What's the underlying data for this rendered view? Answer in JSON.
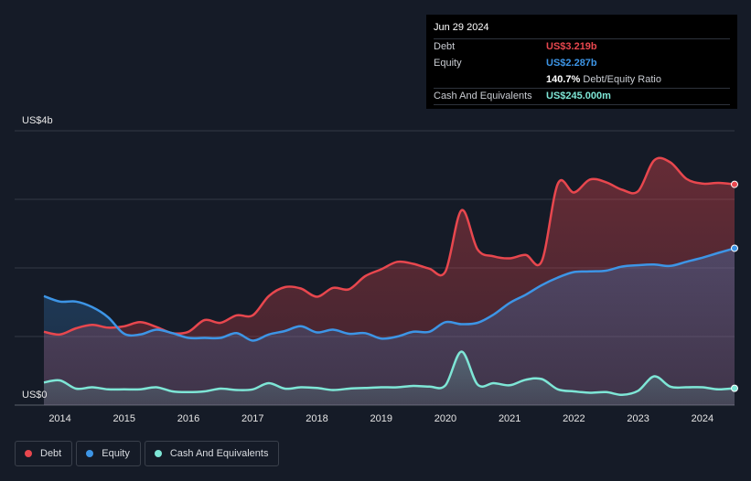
{
  "tooltip": {
    "date": "Jun 29 2024",
    "rows": [
      {
        "label": "Debt",
        "value": "US$3.219b",
        "color": "#e8474e"
      },
      {
        "label": "Equity",
        "value": "US$2.287b",
        "color": "#3d95e6"
      },
      {
        "label": "",
        "value": "140.7%",
        "suffix": "Debt/Equity Ratio",
        "color": "#ffffff"
      },
      {
        "label": "Cash And Equivalents",
        "value": "US$245.000m",
        "color": "#7ee6d6"
      }
    ]
  },
  "legend": {
    "items": [
      {
        "label": "Debt",
        "color": "#e8474e"
      },
      {
        "label": "Equity",
        "color": "#3d95e6"
      },
      {
        "label": "Cash And Equivalents",
        "color": "#7ee6d6"
      }
    ]
  },
  "chart_data": {
    "type": "area",
    "title": "",
    "xlabel": "",
    "ylabel": "",
    "y_top_label": "US$4b",
    "y_bottom_label": "US$0",
    "ylim": [
      0,
      4
    ],
    "xlim": [
      2013.75,
      2024.5
    ],
    "x_ticks": [
      2014,
      2015,
      2016,
      2017,
      2018,
      2019,
      2020,
      2021,
      2022,
      2023,
      2024
    ],
    "x_tick_labels": [
      "2014",
      "2015",
      "2016",
      "2017",
      "2018",
      "2019",
      "2020",
      "2021",
      "2022",
      "2023",
      "2024"
    ],
    "grid": true,
    "series": [
      {
        "name": "Debt",
        "color": "#e8474e",
        "points": [
          [
            2013.75,
            1.07
          ],
          [
            2014.0,
            1.03
          ],
          [
            2014.25,
            1.12
          ],
          [
            2014.5,
            1.17
          ],
          [
            2014.75,
            1.13
          ],
          [
            2015.0,
            1.15
          ],
          [
            2015.25,
            1.21
          ],
          [
            2015.5,
            1.14
          ],
          [
            2015.75,
            1.05
          ],
          [
            2016.0,
            1.07
          ],
          [
            2016.25,
            1.24
          ],
          [
            2016.5,
            1.2
          ],
          [
            2016.75,
            1.31
          ],
          [
            2017.0,
            1.31
          ],
          [
            2017.25,
            1.59
          ],
          [
            2017.5,
            1.72
          ],
          [
            2017.75,
            1.7
          ],
          [
            2018.0,
            1.58
          ],
          [
            2018.25,
            1.71
          ],
          [
            2018.5,
            1.69
          ],
          [
            2018.75,
            1.88
          ],
          [
            2019.0,
            1.98
          ],
          [
            2019.25,
            2.09
          ],
          [
            2019.5,
            2.06
          ],
          [
            2019.75,
            1.99
          ],
          [
            2020.0,
            1.95
          ],
          [
            2020.25,
            2.84
          ],
          [
            2020.5,
            2.27
          ],
          [
            2020.75,
            2.17
          ],
          [
            2021.0,
            2.14
          ],
          [
            2021.25,
            2.19
          ],
          [
            2021.5,
            2.1
          ],
          [
            2021.75,
            3.23
          ],
          [
            2022.0,
            3.1
          ],
          [
            2022.25,
            3.29
          ],
          [
            2022.5,
            3.25
          ],
          [
            2022.75,
            3.14
          ],
          [
            2023.0,
            3.12
          ],
          [
            2023.25,
            3.57
          ],
          [
            2023.5,
            3.54
          ],
          [
            2023.75,
            3.3
          ],
          [
            2024.0,
            3.23
          ],
          [
            2024.25,
            3.24
          ],
          [
            2024.5,
            3.219
          ]
        ]
      },
      {
        "name": "Equity",
        "color": "#3d95e6",
        "points": [
          [
            2013.75,
            1.59
          ],
          [
            2014.0,
            1.51
          ],
          [
            2014.25,
            1.51
          ],
          [
            2014.5,
            1.43
          ],
          [
            2014.75,
            1.28
          ],
          [
            2015.0,
            1.04
          ],
          [
            2015.25,
            1.03
          ],
          [
            2015.5,
            1.1
          ],
          [
            2015.75,
            1.05
          ],
          [
            2016.0,
            0.98
          ],
          [
            2016.25,
            0.98
          ],
          [
            2016.5,
            0.98
          ],
          [
            2016.75,
            1.05
          ],
          [
            2017.0,
            0.94
          ],
          [
            2017.25,
            1.03
          ],
          [
            2017.5,
            1.08
          ],
          [
            2017.75,
            1.15
          ],
          [
            2018.0,
            1.06
          ],
          [
            2018.25,
            1.1
          ],
          [
            2018.5,
            1.04
          ],
          [
            2018.75,
            1.05
          ],
          [
            2019.0,
            0.97
          ],
          [
            2019.25,
            1.0
          ],
          [
            2019.5,
            1.07
          ],
          [
            2019.75,
            1.07
          ],
          [
            2020.0,
            1.21
          ],
          [
            2020.25,
            1.18
          ],
          [
            2020.5,
            1.2
          ],
          [
            2020.75,
            1.32
          ],
          [
            2021.0,
            1.49
          ],
          [
            2021.25,
            1.61
          ],
          [
            2021.5,
            1.75
          ],
          [
            2021.75,
            1.86
          ],
          [
            2022.0,
            1.94
          ],
          [
            2022.25,
            1.95
          ],
          [
            2022.5,
            1.96
          ],
          [
            2022.75,
            2.02
          ],
          [
            2023.0,
            2.04
          ],
          [
            2023.25,
            2.05
          ],
          [
            2023.5,
            2.03
          ],
          [
            2023.75,
            2.09
          ],
          [
            2024.0,
            2.15
          ],
          [
            2024.25,
            2.22
          ],
          [
            2024.5,
            2.287
          ]
        ]
      },
      {
        "name": "Cash And Equivalents",
        "color": "#7ee6d6",
        "points": [
          [
            2013.75,
            0.33
          ],
          [
            2014.0,
            0.36
          ],
          [
            2014.25,
            0.24
          ],
          [
            2014.5,
            0.26
          ],
          [
            2014.75,
            0.23
          ],
          [
            2015.0,
            0.23
          ],
          [
            2015.25,
            0.23
          ],
          [
            2015.5,
            0.26
          ],
          [
            2015.75,
            0.2
          ],
          [
            2016.0,
            0.19
          ],
          [
            2016.25,
            0.2
          ],
          [
            2016.5,
            0.24
          ],
          [
            2016.75,
            0.22
          ],
          [
            2017.0,
            0.23
          ],
          [
            2017.25,
            0.32
          ],
          [
            2017.5,
            0.24
          ],
          [
            2017.75,
            0.26
          ],
          [
            2018.0,
            0.25
          ],
          [
            2018.25,
            0.22
          ],
          [
            2018.5,
            0.24
          ],
          [
            2018.75,
            0.25
          ],
          [
            2019.0,
            0.26
          ],
          [
            2019.25,
            0.26
          ],
          [
            2019.5,
            0.28
          ],
          [
            2019.75,
            0.27
          ],
          [
            2020.0,
            0.29
          ],
          [
            2020.25,
            0.78
          ],
          [
            2020.5,
            0.3
          ],
          [
            2020.75,
            0.32
          ],
          [
            2021.0,
            0.29
          ],
          [
            2021.25,
            0.37
          ],
          [
            2021.5,
            0.38
          ],
          [
            2021.75,
            0.23
          ],
          [
            2022.0,
            0.2
          ],
          [
            2022.25,
            0.18
          ],
          [
            2022.5,
            0.19
          ],
          [
            2022.75,
            0.15
          ],
          [
            2023.0,
            0.21
          ],
          [
            2023.25,
            0.42
          ],
          [
            2023.5,
            0.27
          ],
          [
            2023.75,
            0.26
          ],
          [
            2024.0,
            0.26
          ],
          [
            2024.25,
            0.23
          ],
          [
            2024.5,
            0.245
          ]
        ]
      }
    ]
  }
}
